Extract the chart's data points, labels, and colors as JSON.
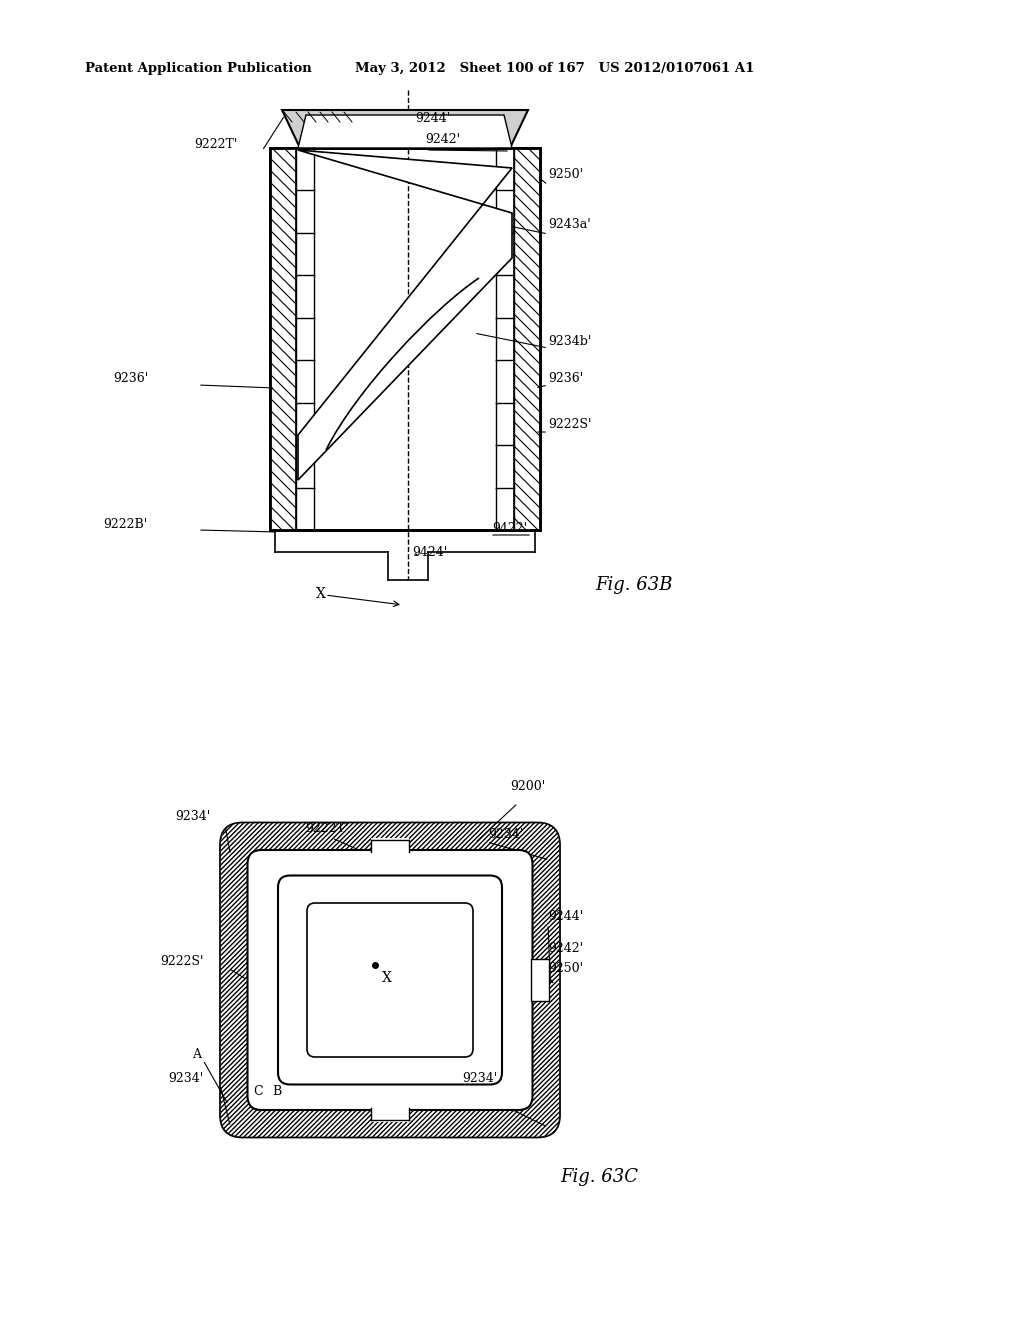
{
  "header_left": "Patent Application Publication",
  "header_mid": "May 3, 2012   Sheet 100 of 167   US 2012/0107061 A1",
  "fig63b_label": "Fig. 63B",
  "fig63c_label": "Fig. 63C",
  "background": "#ffffff",
  "line_color": "#000000"
}
